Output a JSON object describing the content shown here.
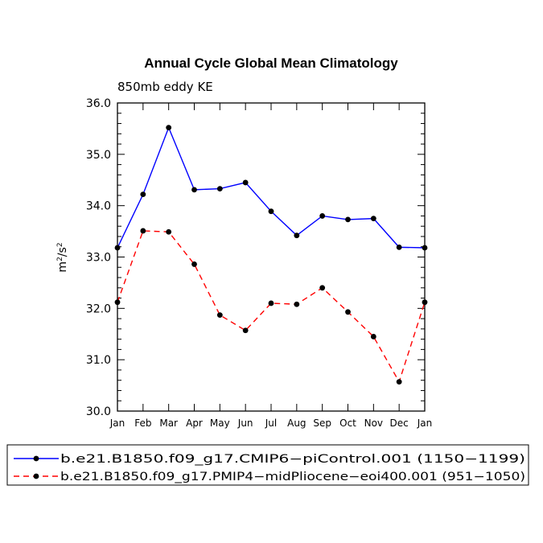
{
  "chart_data": {
    "type": "line",
    "title": "Annual Cycle Global Mean Climatology",
    "subtitle": "850mb eddy KE",
    "xlabel": "",
    "ylabel_base": "m",
    "ylabel_sup1": "2",
    "ylabel_mid": "/s",
    "ylabel_sup2": "2",
    "ylim": [
      30.0,
      36.0
    ],
    "yticks": [
      "30.0",
      "31.0",
      "32.0",
      "33.0",
      "34.0",
      "35.0",
      "36.0"
    ],
    "categories": [
      "Jan",
      "Feb",
      "Mar",
      "Apr",
      "May",
      "Jun",
      "Jul",
      "Aug",
      "Sep",
      "Oct",
      "Nov",
      "Dec",
      "Jan"
    ],
    "series": [
      {
        "name": "b.e21.B1850.f09_g17.CMIP6−piControl.001 (1150−1199)",
        "color": "#0000ff",
        "dash": "solid",
        "values": [
          33.18,
          34.22,
          35.52,
          34.31,
          34.33,
          34.45,
          33.89,
          33.42,
          33.8,
          33.73,
          33.75,
          33.19,
          33.18
        ]
      },
      {
        "name": "b.e21.B1850.f09_g17.PMIP4−midPliocene−eoi400.001 (951−1050)",
        "color": "#ff0000",
        "dash": "dashed",
        "values": [
          32.12,
          33.51,
          33.49,
          32.86,
          31.87,
          31.57,
          32.1,
          32.08,
          32.4,
          31.93,
          31.45,
          30.57,
          32.12
        ]
      }
    ]
  }
}
